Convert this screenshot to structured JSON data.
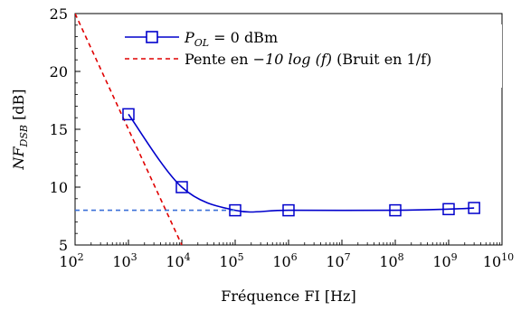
{
  "chart_data": {
    "type": "line",
    "xlabel": "Fréquence FI [Hz]",
    "ylabel": "NF_DSB [dB]",
    "ylabel_main": "NF",
    "ylabel_sub": "DSB",
    "ylabel_unit": " [dB]",
    "x_scale": "log",
    "xlim": [
      100,
      10000000000
    ],
    "ylim": [
      5,
      25
    ],
    "x_ticks": [
      {
        "base": "10",
        "exp": "2"
      },
      {
        "base": "10",
        "exp": "3"
      },
      {
        "base": "10",
        "exp": "4"
      },
      {
        "base": "10",
        "exp": "5"
      },
      {
        "base": "10",
        "exp": "6"
      },
      {
        "base": "10",
        "exp": "7"
      },
      {
        "base": "10",
        "exp": "8"
      },
      {
        "base": "10",
        "exp": "9"
      },
      {
        "base": "10",
        "exp": "10"
      }
    ],
    "y_ticks": [
      "5",
      "10",
      "15",
      "20",
      "25"
    ],
    "grid": false,
    "legend_position": "top-center",
    "series": [
      {
        "name": "P_OL = 0 dBm",
        "legend_main": "P",
        "legend_sub": "OL",
        "legend_rest": " = 0 dBm",
        "style": "solid-line-square-markers",
        "color": "#0000cc",
        "x": [
          1000,
          10000,
          100000,
          1000000,
          100000000,
          1000000000,
          3000000000
        ],
        "y": [
          16.3,
          10.0,
          8.0,
          8.0,
          8.0,
          8.1,
          8.2
        ]
      },
      {
        "name": "Pente en −10 log (f) (Bruit en 1/f)",
        "legend_prefix": "Pente en ",
        "legend_math": "−10 log (f)",
        "legend_suffix": " (Bruit en 1/f)",
        "style": "dashed",
        "color": "#e00000",
        "x": [
          100,
          10000
        ],
        "y": [
          25,
          5
        ]
      },
      {
        "name": "",
        "style": "dashed",
        "color": "#3a6fd8",
        "x": [
          100,
          100000
        ],
        "y": [
          8,
          8
        ]
      }
    ]
  }
}
